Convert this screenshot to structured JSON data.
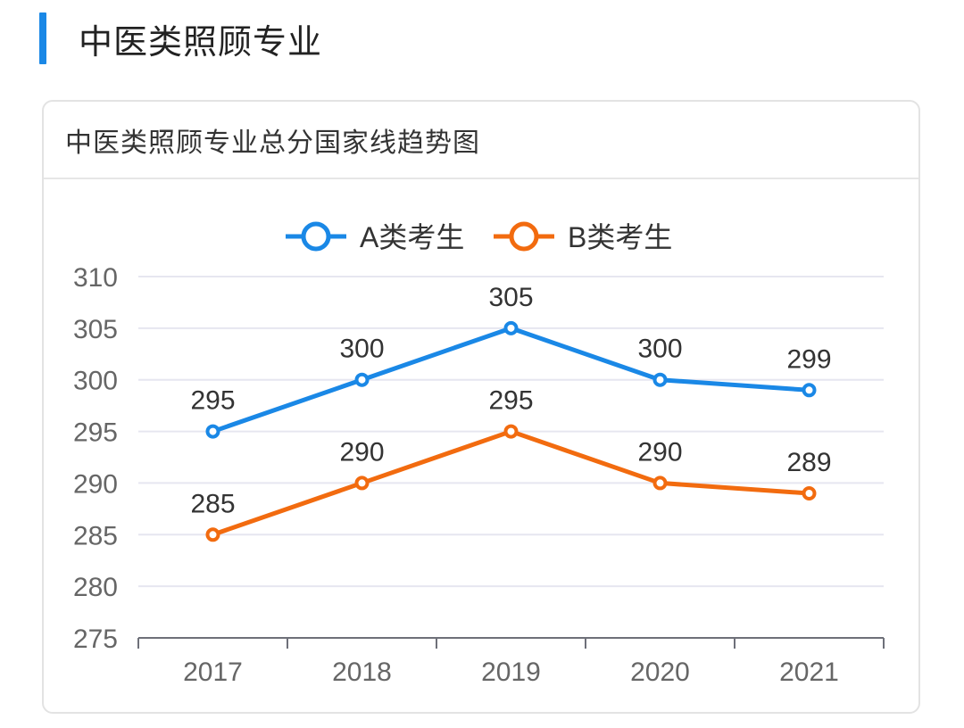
{
  "section": {
    "title": "中医类照顾专业"
  },
  "card": {
    "title": "中医类照顾专业总分国家线趋势图"
  },
  "chart_data": {
    "type": "line",
    "title": "中医类照顾专业总分国家线趋势图",
    "categories": [
      "2017",
      "2018",
      "2019",
      "2020",
      "2021"
    ],
    "series": [
      {
        "name": "A类考生",
        "values": [
          295,
          300,
          305,
          300,
          299
        ],
        "color": "#1a88e6"
      },
      {
        "name": "B类考生",
        "values": [
          285,
          290,
          295,
          290,
          289
        ],
        "color": "#f26b0f"
      }
    ],
    "ylim": [
      275,
      310
    ],
    "yticks": [
      "275",
      "280",
      "285",
      "290",
      "295",
      "300",
      "305",
      "310"
    ],
    "legend_position": "top-center",
    "grid": true,
    "data_labels": true,
    "xlabel": "",
    "ylabel": ""
  }
}
